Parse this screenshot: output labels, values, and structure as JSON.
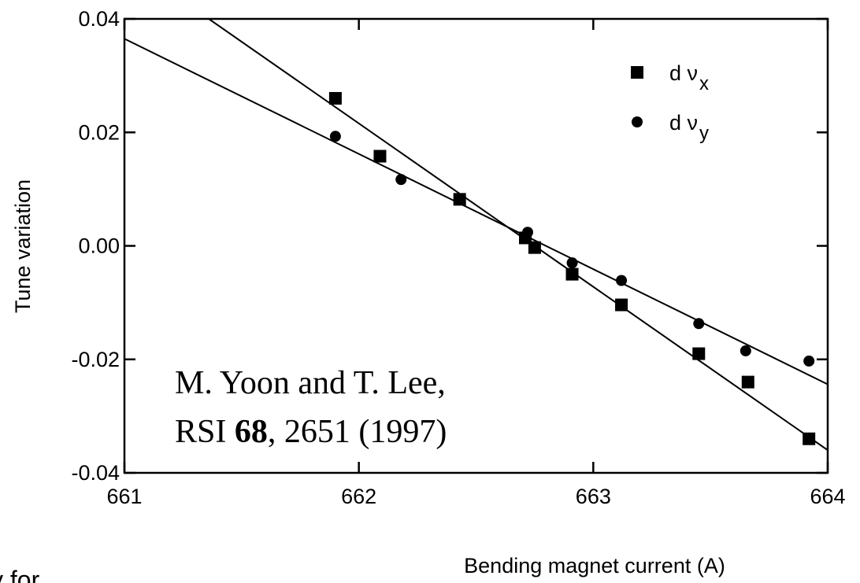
{
  "chart_data": {
    "type": "scatter",
    "xlabel": "Bending magnet current (A)",
    "ylabel": "Tune variation",
    "xlim": [
      661,
      664
    ],
    "xticks": [
      661,
      662,
      663,
      664
    ],
    "ylim": [
      -0.04,
      0.04
    ],
    "yticks": [
      -0.04,
      -0.02,
      {
        "value": 0,
        "label": "0.00"
      },
      0.02,
      0.04
    ],
    "series": [
      {
        "name": "d ν",
        "subscript": "x",
        "marker": "square",
        "color": "#000000",
        "x": [
          661.9,
          662.09,
          662.43,
          662.71,
          662.75,
          662.91,
          663.12,
          663.45,
          663.66,
          663.92
        ],
        "values": [
          0.026,
          0.0158,
          0.0082,
          0.0014,
          -0.0003,
          -0.005,
          -0.0104,
          -0.019,
          -0.024,
          -0.034
        ],
        "fit": {
          "x": [
            661.36,
            664
          ],
          "values": [
            0.04,
            -0.036
          ]
        }
      },
      {
        "name": "d ν",
        "subscript": "y",
        "marker": "circle",
        "color": "#000000",
        "x": [
          661.9,
          662.18,
          662.43,
          662.72,
          662.91,
          663.12,
          663.45,
          663.65,
          663.92
        ],
        "values": [
          0.0193,
          0.0117,
          0.0082,
          0.0024,
          -0.003,
          -0.0061,
          -0.0137,
          -0.0185,
          -0.0203
        ],
        "fit": {
          "x": [
            661,
            664
          ],
          "values": [
            0.0365,
            -0.0244
          ]
        }
      }
    ],
    "annotation": {
      "line1": "M. Yoon and T. Lee,",
      "line2": [
        "RSI ",
        "68",
        ", 2651 (1997)"
      ]
    },
    "fragment": "y for"
  }
}
